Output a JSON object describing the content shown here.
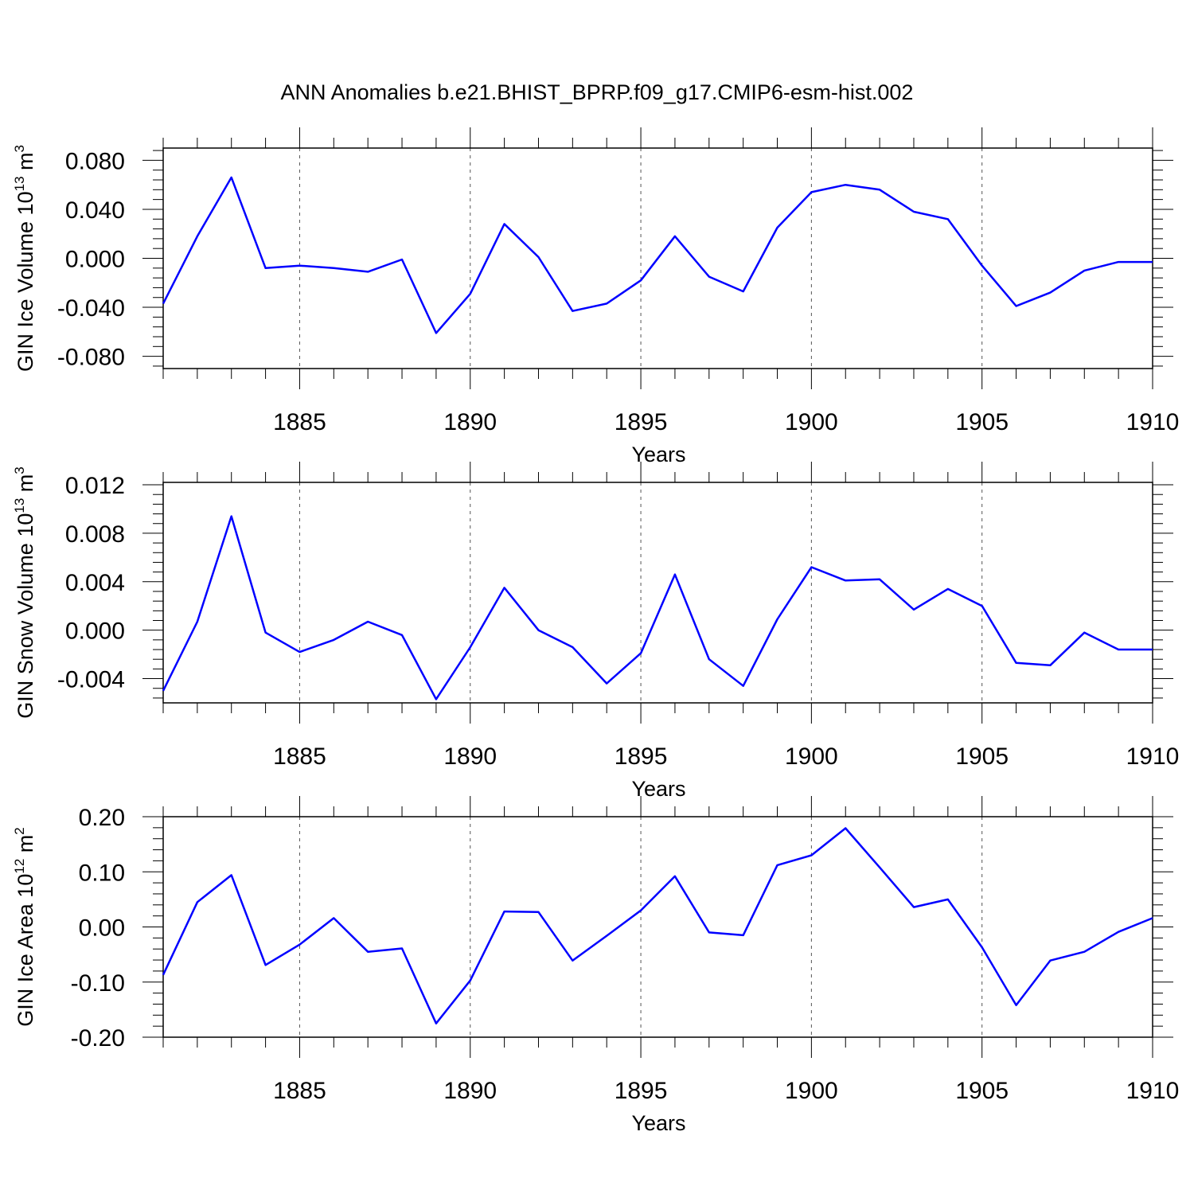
{
  "title": "ANN Anomalies b.e21.BHIST_BPRP.f09_g17.CMIP6-esm-hist.002",
  "colors": {
    "line": "#0000ff",
    "axis": "#000000",
    "grid": "#555555"
  },
  "chart_data": [
    {
      "type": "line",
      "ylabel": "GIN Ice Volume",
      "ylabel_unit_base": "10",
      "ylabel_unit_exp": "13",
      "ylabel_unit_tail": "m",
      "ylabel_unit_tail_exp": "3",
      "xlabel": "Years",
      "xlim": [
        1881,
        1910
      ],
      "ylim": [
        -0.09,
        0.09
      ],
      "xticks": [
        1885,
        1890,
        1895,
        1900,
        1905,
        1910
      ],
      "xtick_labels": [
        "1885",
        "1890",
        "1895",
        "1900",
        "1905",
        "1910"
      ],
      "yticks": [
        -0.08,
        -0.04,
        0.0,
        0.04,
        0.08
      ],
      "ytick_labels": [
        "-0.080",
        "-0.040",
        "0.000",
        "0.040",
        "0.080"
      ],
      "grid": "dashed vertical at major x ticks",
      "series": [
        {
          "x": [
            1881,
            1882,
            1883,
            1884,
            1885,
            1886,
            1887,
            1888,
            1889,
            1890,
            1891,
            1892,
            1893,
            1894,
            1895,
            1896,
            1897,
            1898,
            1899,
            1900,
            1901,
            1902,
            1903,
            1904,
            1905,
            1906,
            1907,
            1908,
            1909,
            1910
          ],
          "values": [
            -0.037,
            0.018,
            0.066,
            -0.008,
            -0.006,
            -0.008,
            -0.011,
            -0.001,
            -0.061,
            -0.029,
            0.028,
            0.001,
            -0.043,
            -0.037,
            -0.018,
            0.018,
            -0.015,
            -0.027,
            0.025,
            0.054,
            0.06,
            0.056,
            0.038,
            0.032,
            -0.006,
            -0.039,
            -0.028,
            -0.01,
            -0.003,
            -0.003
          ]
        }
      ]
    },
    {
      "type": "line",
      "ylabel": "GIN Snow Volume",
      "ylabel_unit_base": "10",
      "ylabel_unit_exp": "13",
      "ylabel_unit_tail": "m",
      "ylabel_unit_tail_exp": "3",
      "xlabel": "Years",
      "xlim": [
        1881,
        1910
      ],
      "ylim": [
        -0.006,
        0.0122
      ],
      "xticks": [
        1885,
        1890,
        1895,
        1900,
        1905,
        1910
      ],
      "xtick_labels": [
        "1885",
        "1890",
        "1895",
        "1900",
        "1905",
        "1910"
      ],
      "yticks": [
        -0.004,
        0.0,
        0.004,
        0.008,
        0.012
      ],
      "ytick_labels": [
        "-0.004",
        "0.000",
        "0.004",
        "0.008",
        "0.012"
      ],
      "grid": "dashed vertical at major x ticks",
      "series": [
        {
          "x": [
            1881,
            1882,
            1883,
            1884,
            1885,
            1886,
            1887,
            1888,
            1889,
            1890,
            1891,
            1892,
            1893,
            1894,
            1895,
            1896,
            1897,
            1898,
            1899,
            1900,
            1901,
            1902,
            1903,
            1904,
            1905,
            1906,
            1907,
            1908,
            1909,
            1910
          ],
          "values": [
            -0.005,
            0.0007,
            0.0094,
            -0.0002,
            -0.0018,
            -0.0008,
            0.0007,
            -0.0004,
            -0.0057,
            -0.0014,
            0.0035,
            0.0,
            -0.0014,
            -0.0044,
            -0.0019,
            0.0046,
            -0.0024,
            -0.0046,
            0.0009,
            0.0052,
            0.0041,
            0.0042,
            0.0017,
            0.0034,
            0.002,
            -0.0027,
            -0.0029,
            -0.0002,
            -0.0016,
            -0.0016
          ]
        }
      ]
    },
    {
      "type": "line",
      "ylabel": "GIN Ice Area",
      "ylabel_unit_base": "10",
      "ylabel_unit_exp": "12",
      "ylabel_unit_tail": "m",
      "ylabel_unit_tail_exp": "2",
      "xlabel": "Years",
      "xlim": [
        1881,
        1910
      ],
      "ylim": [
        -0.2,
        0.2
      ],
      "xticks": [
        1885,
        1890,
        1895,
        1900,
        1905,
        1910
      ],
      "xtick_labels": [
        "1885",
        "1890",
        "1895",
        "1900",
        "1905",
        "1910"
      ],
      "yticks": [
        -0.2,
        -0.1,
        0.0,
        0.1,
        0.2
      ],
      "ytick_labels": [
        "-0.20",
        "-0.10",
        "0.00",
        "0.10",
        "0.20"
      ],
      "grid": "dashed vertical at major x ticks",
      "series": [
        {
          "x": [
            1881,
            1882,
            1883,
            1884,
            1885,
            1886,
            1887,
            1888,
            1889,
            1890,
            1891,
            1892,
            1893,
            1894,
            1895,
            1896,
            1897,
            1898,
            1899,
            1900,
            1901,
            1902,
            1903,
            1904,
            1905,
            1906,
            1907,
            1908,
            1909,
            1910
          ],
          "values": [
            -0.087,
            0.045,
            0.094,
            -0.069,
            -0.032,
            0.016,
            -0.045,
            -0.039,
            -0.175,
            -0.097,
            0.028,
            0.027,
            -0.061,
            -0.016,
            0.03,
            0.092,
            -0.01,
            -0.015,
            0.112,
            0.13,
            0.179,
            0.108,
            0.036,
            0.05,
            -0.037,
            -0.142,
            -0.061,
            -0.045,
            -0.009,
            0.016
          ]
        }
      ]
    }
  ]
}
